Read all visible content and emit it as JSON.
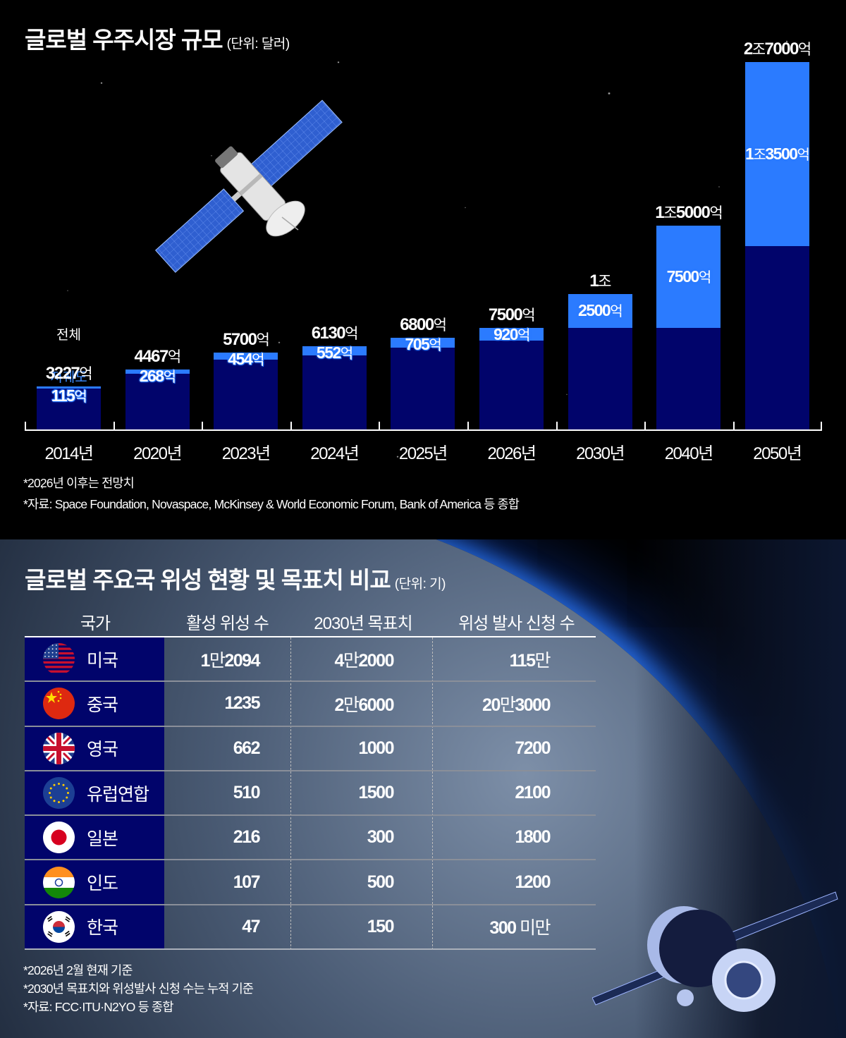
{
  "chart_data": {
    "type": "bar",
    "title": "글로벌 우주시장 규모",
    "unit": "(단위: 달러)",
    "xlabel": "",
    "ylabel": "",
    "categories": [
      "2014년",
      "2020년",
      "2023년",
      "2024년",
      "2025년",
      "2026년",
      "2030년",
      "2040년",
      "2050년"
    ],
    "series": [
      {
        "name": "전체",
        "values": [
          3227,
          4467,
          5700,
          6130,
          6800,
          7500,
          10000,
          15000,
          27000
        ],
        "labels": [
          "3227억",
          "4467억",
          "5700억",
          "6130억",
          "6800억",
          "7500억",
          "1조",
          "1조5000억",
          "2조7000억"
        ]
      },
      {
        "name": "저궤도",
        "values": [
          115,
          268,
          454,
          552,
          705,
          920,
          2500,
          7500,
          13500
        ],
        "labels": [
          "115억",
          "268억",
          "454억",
          "552억",
          "705억",
          "920억",
          "2500억",
          "7500억",
          "1조3500억"
        ]
      }
    ],
    "value_unit": "억 달러",
    "legend": [
      "전체",
      "저궤도"
    ],
    "grid": false,
    "ylim": [
      0,
      27000
    ]
  },
  "chart": {
    "title": "글로벌 우주시장 규모",
    "unit": "(단위: 달러)",
    "legend_total": "전체",
    "legend_leo": "저궤도",
    "bars": [
      {
        "year": "2014년",
        "total_num": "3227",
        "total_unit": "억",
        "leo_num": "115",
        "leo_unit": "억"
      },
      {
        "year": "2020년",
        "total_num": "4467",
        "total_unit": "억",
        "leo_num": "268",
        "leo_unit": "억"
      },
      {
        "year": "2023년",
        "total_num": "5700",
        "total_unit": "억",
        "leo_num": "454",
        "leo_unit": "억"
      },
      {
        "year": "2024년",
        "total_num": "6130",
        "total_unit": "억",
        "leo_num": "552",
        "leo_unit": "억"
      },
      {
        "year": "2025년",
        "total_num": "6800",
        "total_unit": "억",
        "leo_num": "705",
        "leo_unit": "억"
      },
      {
        "year": "2026년",
        "total_num": "7500",
        "total_unit": "억",
        "leo_num": "920",
        "leo_unit": "억"
      },
      {
        "year": "2030년",
        "total_num": "1",
        "total_unit": "조",
        "leo_num": "2500",
        "leo_unit": "억"
      },
      {
        "year": "2040년",
        "total_num": "1",
        "total_unit": "조",
        "total_num2": "5000",
        "total_unit2": "억",
        "leo_num": "7500",
        "leo_unit": "억"
      },
      {
        "year": "2050년",
        "total_num": "2",
        "total_unit": "조",
        "total_num2": "7000",
        "total_unit2": "억",
        "leo_num": "1",
        "leo_unit": "조",
        "leo_num2": "3500",
        "leo_unit2": "억"
      }
    ],
    "notes": [
      "*2026년 이후는 전망치",
      "*자료: Space Foundation, Novaspace, McKinsey & World Economic Forum, Bank of America 등 종합"
    ]
  },
  "table": {
    "title": "글로벌 주요국 위성 현황 및 목표치 비교",
    "unit": "(단위: 기)",
    "headers": [
      "국가",
      "활성 위성 수",
      "2030년 목표치",
      "위성 발사 신청 수"
    ],
    "rows": [
      {
        "flag": "us-flag",
        "country": "미국",
        "active": [
          "1",
          "만",
          "2094"
        ],
        "target": [
          "4",
          "만",
          "2000"
        ],
        "applied": [
          "115",
          "만",
          ""
        ]
      },
      {
        "flag": "cn-flag",
        "country": "중국",
        "active": [
          "1235",
          "",
          ""
        ],
        "target": [
          "2",
          "만",
          "6000"
        ],
        "applied": [
          "20",
          "만",
          "3000"
        ]
      },
      {
        "flag": "uk-flag",
        "country": "영국",
        "active": [
          "662",
          "",
          ""
        ],
        "target": [
          "1000",
          "",
          ""
        ],
        "applied": [
          "7200",
          "",
          ""
        ]
      },
      {
        "flag": "eu-flag",
        "country": "유럽연합",
        "active": [
          "510",
          "",
          ""
        ],
        "target": [
          "1500",
          "",
          ""
        ],
        "applied": [
          "2100",
          "",
          ""
        ]
      },
      {
        "flag": "jp-flag",
        "country": "일본",
        "active": [
          "216",
          "",
          ""
        ],
        "target": [
          "300",
          "",
          ""
        ],
        "applied": [
          "1800",
          "",
          ""
        ]
      },
      {
        "flag": "in-flag",
        "country": "인도",
        "active": [
          "107",
          "",
          ""
        ],
        "target": [
          "500",
          "",
          ""
        ],
        "applied": [
          "1200",
          "",
          ""
        ]
      },
      {
        "flag": "kr-flag",
        "country": "한국",
        "active": [
          "47",
          "",
          ""
        ],
        "target": [
          "150",
          "",
          ""
        ],
        "applied": [
          "300",
          " 미만",
          ""
        ]
      }
    ],
    "notes": [
      "*2026년 2월 현재 기준",
      "*2030년 목표치와 위성발사 신청 수는 누적 기준",
      "*자료: FCC·ITU·N2YO 등 종합"
    ]
  },
  "colors": {
    "total_bar": "#01046b",
    "leo_bar": "#2b7bff",
    "leo_text": "#3d8bff",
    "country_cell": "#01046b",
    "background": "#000000"
  }
}
